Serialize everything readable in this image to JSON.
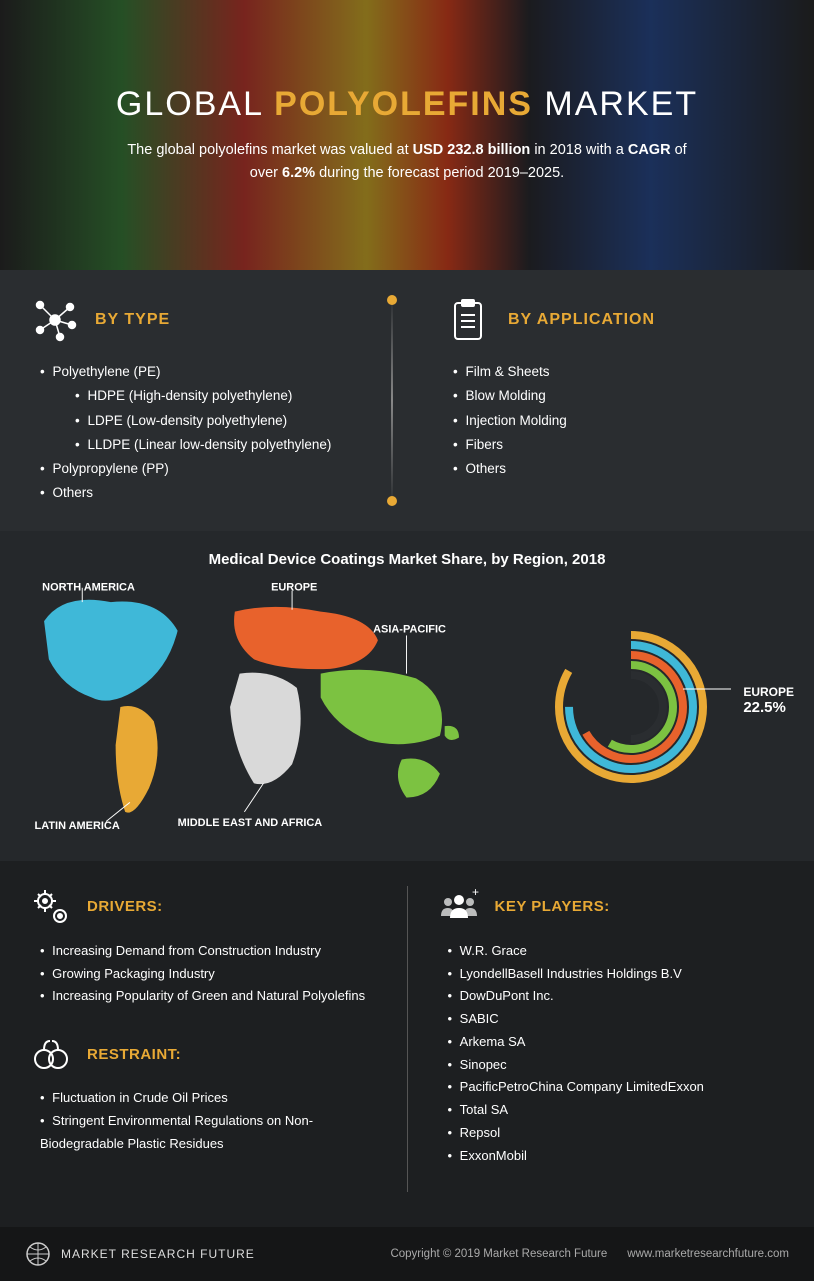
{
  "hero": {
    "title_pre": "GLOBAL ",
    "title_accent": "POLYOLEFINS",
    "title_post": " MARKET",
    "subtitle_html": "The global polyolefins market was valued at <b>USD 232.8 billion</b> in 2018 with a <b>CAGR</b> of over <b>6.2%</b> during the forecast period 2019–2025."
  },
  "segments": {
    "type": {
      "title": "BY TYPE",
      "items": [
        {
          "t": "Polyethylene (PE)"
        },
        {
          "t": "HDPE (High-density polyethylene)",
          "sub": true
        },
        {
          "t": "LDPE (Low-density polyethylene)",
          "sub": true
        },
        {
          "t": "LLDPE (Linear low-density polyethylene)",
          "sub": true
        },
        {
          "t": "Polypropylene (PP)"
        },
        {
          "t": "Others"
        }
      ]
    },
    "application": {
      "title": "BY APPLICATION",
      "items": [
        {
          "t": "Film & Sheets"
        },
        {
          "t": "Blow Molding"
        },
        {
          "t": "Injection Molding"
        },
        {
          "t": "Fibers"
        },
        {
          "t": "Others"
        }
      ]
    }
  },
  "map": {
    "title": "Medical Device Coatings Market Share, by Region, 2018",
    "regions": {
      "north_america": {
        "label": "NORTH AMERICA",
        "color": "#3fb8d8"
      },
      "latin_america": {
        "label": "LATIN AMERICA",
        "color": "#e8a935"
      },
      "europe": {
        "label": "EUROPE",
        "color": "#e8622c"
      },
      "mea": {
        "label": "MIDDLE EAST AND AFRICA",
        "color": "#d9d9d9"
      },
      "asia_pacific": {
        "label": "ASIA-PACIFIC",
        "color": "#7cc241"
      }
    },
    "donut": {
      "highlight_label": "EUROPE",
      "highlight_value": "22.5%",
      "rings": [
        {
          "color": "#e8a935",
          "r": 72,
          "len": 300
        },
        {
          "color": "#3fb8d8",
          "r": 62,
          "len": 270
        },
        {
          "color": "#e8622c",
          "r": 52,
          "len": 240
        },
        {
          "color": "#7cc241",
          "r": 42,
          "len": 210
        },
        {
          "color": "#2a2d30",
          "r": 32,
          "len": 180
        }
      ]
    }
  },
  "bottom": {
    "drivers": {
      "title": "DRIVERS:",
      "items": [
        "Increasing Demand from Construction Industry",
        "Growing Packaging Industry",
        "Increasing Popularity of Green and Natural Polyolefins"
      ]
    },
    "restraint": {
      "title": "RESTRAINT:",
      "items": [
        "Fluctuation in Crude Oil Prices",
        "Stringent Environmental Regulations on Non-Biodegradable Plastic Residues"
      ]
    },
    "players": {
      "title": "KEY PLAYERS:",
      "items": [
        "W.R. Grace",
        "LyondellBasell Industries Holdings B.V",
        "DowDuPont Inc.",
        "SABIC",
        "Arkema SA",
        "Sinopec",
        "PacificPetroChina Company LimitedExxon",
        "Total SA",
        "Repsol",
        "ExxonMobil"
      ]
    }
  },
  "footer": {
    "brand": "MARKET RESEARCH FUTURE",
    "copyright": "Copyright © 2019 Market Research Future",
    "url": "www.marketresearchfuture.com"
  },
  "colors": {
    "accent": "#e8a935",
    "bg_dark": "#1d1f21"
  }
}
